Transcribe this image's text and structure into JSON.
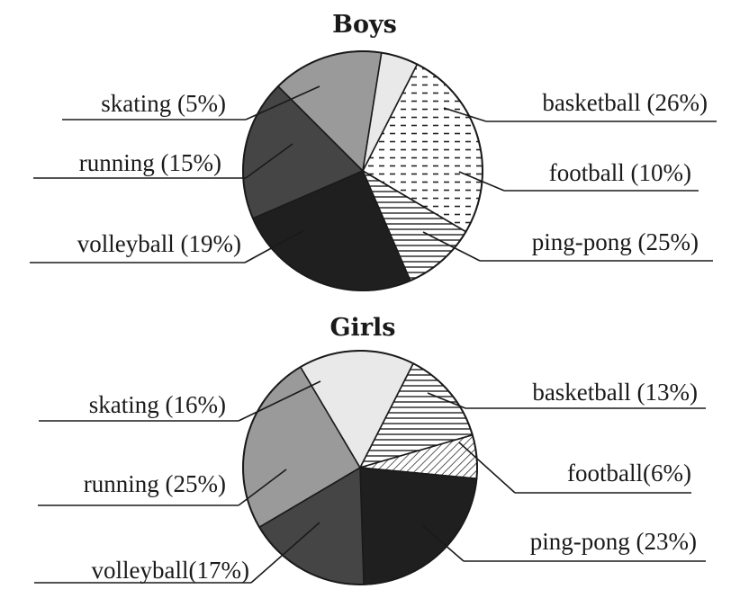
{
  "chart_data": [
    {
      "type": "pie",
      "title": "Boys",
      "categories": [
        "basketball",
        "football",
        "ping-pong",
        "volleyball",
        "running",
        "skating"
      ],
      "values": [
        26,
        10,
        25,
        19,
        15,
        5
      ],
      "labels": [
        "basketball (26%)",
        "football (10%)",
        "ping-pong (25%)",
        "volleyball (19%)",
        "running (15%)",
        "skating (5%)"
      ],
      "fills": [
        "dashes",
        "hlines",
        "#1f1f1f",
        "#454545",
        "#9a9a9a",
        "#e9e9e9"
      ]
    },
    {
      "type": "pie",
      "title": "Girls",
      "categories": [
        "basketball",
        "football",
        "ping-pong",
        "volleyball",
        "running",
        "skating"
      ],
      "values": [
        13,
        6,
        23,
        17,
        25,
        16
      ],
      "labels": [
        "basketball (13%)",
        "football(6%)",
        "ping-pong (23%)",
        "volleyball(17%)",
        "running (25%)",
        "skating (16%)"
      ],
      "fills": [
        "hlines",
        "diag",
        "#1f1f1f",
        "#454545",
        "#9a9a9a",
        "#e9e9e9"
      ]
    }
  ]
}
